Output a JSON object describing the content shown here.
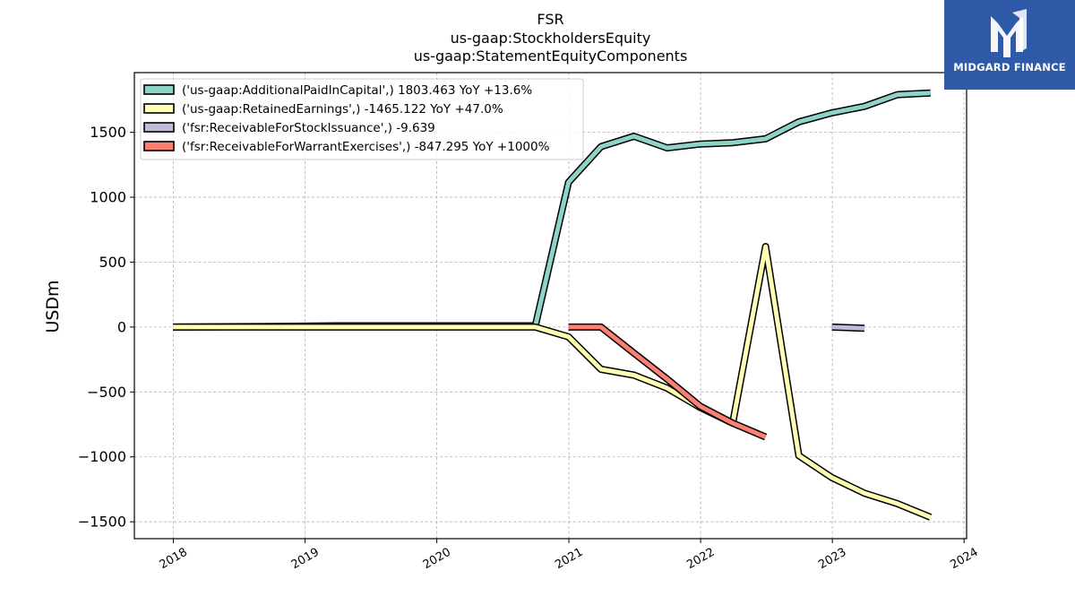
{
  "chart_data": {
    "type": "line",
    "title": [
      "FSR",
      "us-gaap:StockholdersEquity",
      "us-gaap:StatementEquityComponents"
    ],
    "ylabel": "USDm",
    "xlabel": "",
    "ylim": [
      -1630,
      1960
    ],
    "xlim": [
      "2017-09-15",
      "2024-01-08"
    ],
    "yticks": [
      -1500,
      -1000,
      -500,
      0,
      500,
      1000,
      1500
    ],
    "ytick_labels": [
      "−1500",
      "−1000",
      "−500",
      "0",
      "500",
      "1000",
      "1500"
    ],
    "xticks": [
      "2018-01-01",
      "2019-01-01",
      "2020-01-01",
      "2021-01-01",
      "2022-01-01",
      "2023-01-01",
      "2024-01-01"
    ],
    "xtick_labels": [
      "2018",
      "2019",
      "2020",
      "2021",
      "2022",
      "2023",
      "2024"
    ],
    "grid": true,
    "legend_position": "top-left",
    "series": [
      {
        "name": "('us-gaap:AdditionalPaidInCapital',) 1803.463 YoY +13.6%",
        "color": "#8dd3c7",
        "points": [
          [
            "2017-12-31",
            0
          ],
          [
            "2018-09-30",
            5
          ],
          [
            "2019-03-31",
            10
          ],
          [
            "2019-09-30",
            10
          ],
          [
            "2020-09-30",
            10
          ],
          [
            "2020-12-31",
            1115
          ],
          [
            "2021-03-31",
            1390
          ],
          [
            "2021-06-30",
            1470
          ],
          [
            "2021-09-30",
            1380
          ],
          [
            "2021-12-31",
            1410
          ],
          [
            "2022-03-31",
            1420
          ],
          [
            "2022-06-30",
            1450
          ],
          [
            "2022-09-30",
            1580
          ],
          [
            "2022-12-31",
            1650
          ],
          [
            "2023-03-31",
            1700
          ],
          [
            "2023-06-30",
            1790
          ],
          [
            "2023-09-30",
            1803.463
          ]
        ]
      },
      {
        "name": "('us-gaap:RetainedEarnings',) -1465.122 YoY +47.0%",
        "color": "#ffffb3",
        "points": [
          [
            "2017-12-31",
            0
          ],
          [
            "2018-06-30",
            0
          ],
          [
            "2019-03-31",
            0
          ],
          [
            "2019-09-30",
            0
          ],
          [
            "2020-09-30",
            0
          ],
          [
            "2020-12-31",
            -75
          ],
          [
            "2021-03-31",
            -325
          ],
          [
            "2021-06-30",
            -370
          ],
          [
            "2021-09-30",
            -470
          ],
          [
            "2021-12-31",
            -620
          ],
          [
            "2022-03-31",
            -740
          ],
          [
            "2022-06-30",
            620
          ],
          [
            "2022-09-30",
            -990
          ],
          [
            "2022-12-31",
            -1160
          ],
          [
            "2023-03-31",
            -1280
          ],
          [
            "2023-06-30",
            -1360
          ],
          [
            "2023-09-30",
            -1465.122
          ]
        ]
      },
      {
        "name": "('fsr:ReceivableForStockIssuance',) -9.639",
        "color": "#bebada",
        "points": [
          [
            "2022-12-31",
            0
          ],
          [
            "2023-03-31",
            -9.639
          ]
        ]
      },
      {
        "name": "('fsr:ReceivableForWarrantExercises',) -847.295 YoY +1000%",
        "color": "#fb8072",
        "points": [
          [
            "2020-12-31",
            0
          ],
          [
            "2021-03-31",
            0
          ],
          [
            "2021-06-30",
            -200
          ],
          [
            "2021-09-30",
            -400
          ],
          [
            "2021-12-31",
            -610
          ],
          [
            "2022-03-31",
            -740
          ],
          [
            "2022-06-30",
            -847.295
          ]
        ]
      }
    ]
  },
  "logo": {
    "text": "MIDGARD FINANCE"
  }
}
